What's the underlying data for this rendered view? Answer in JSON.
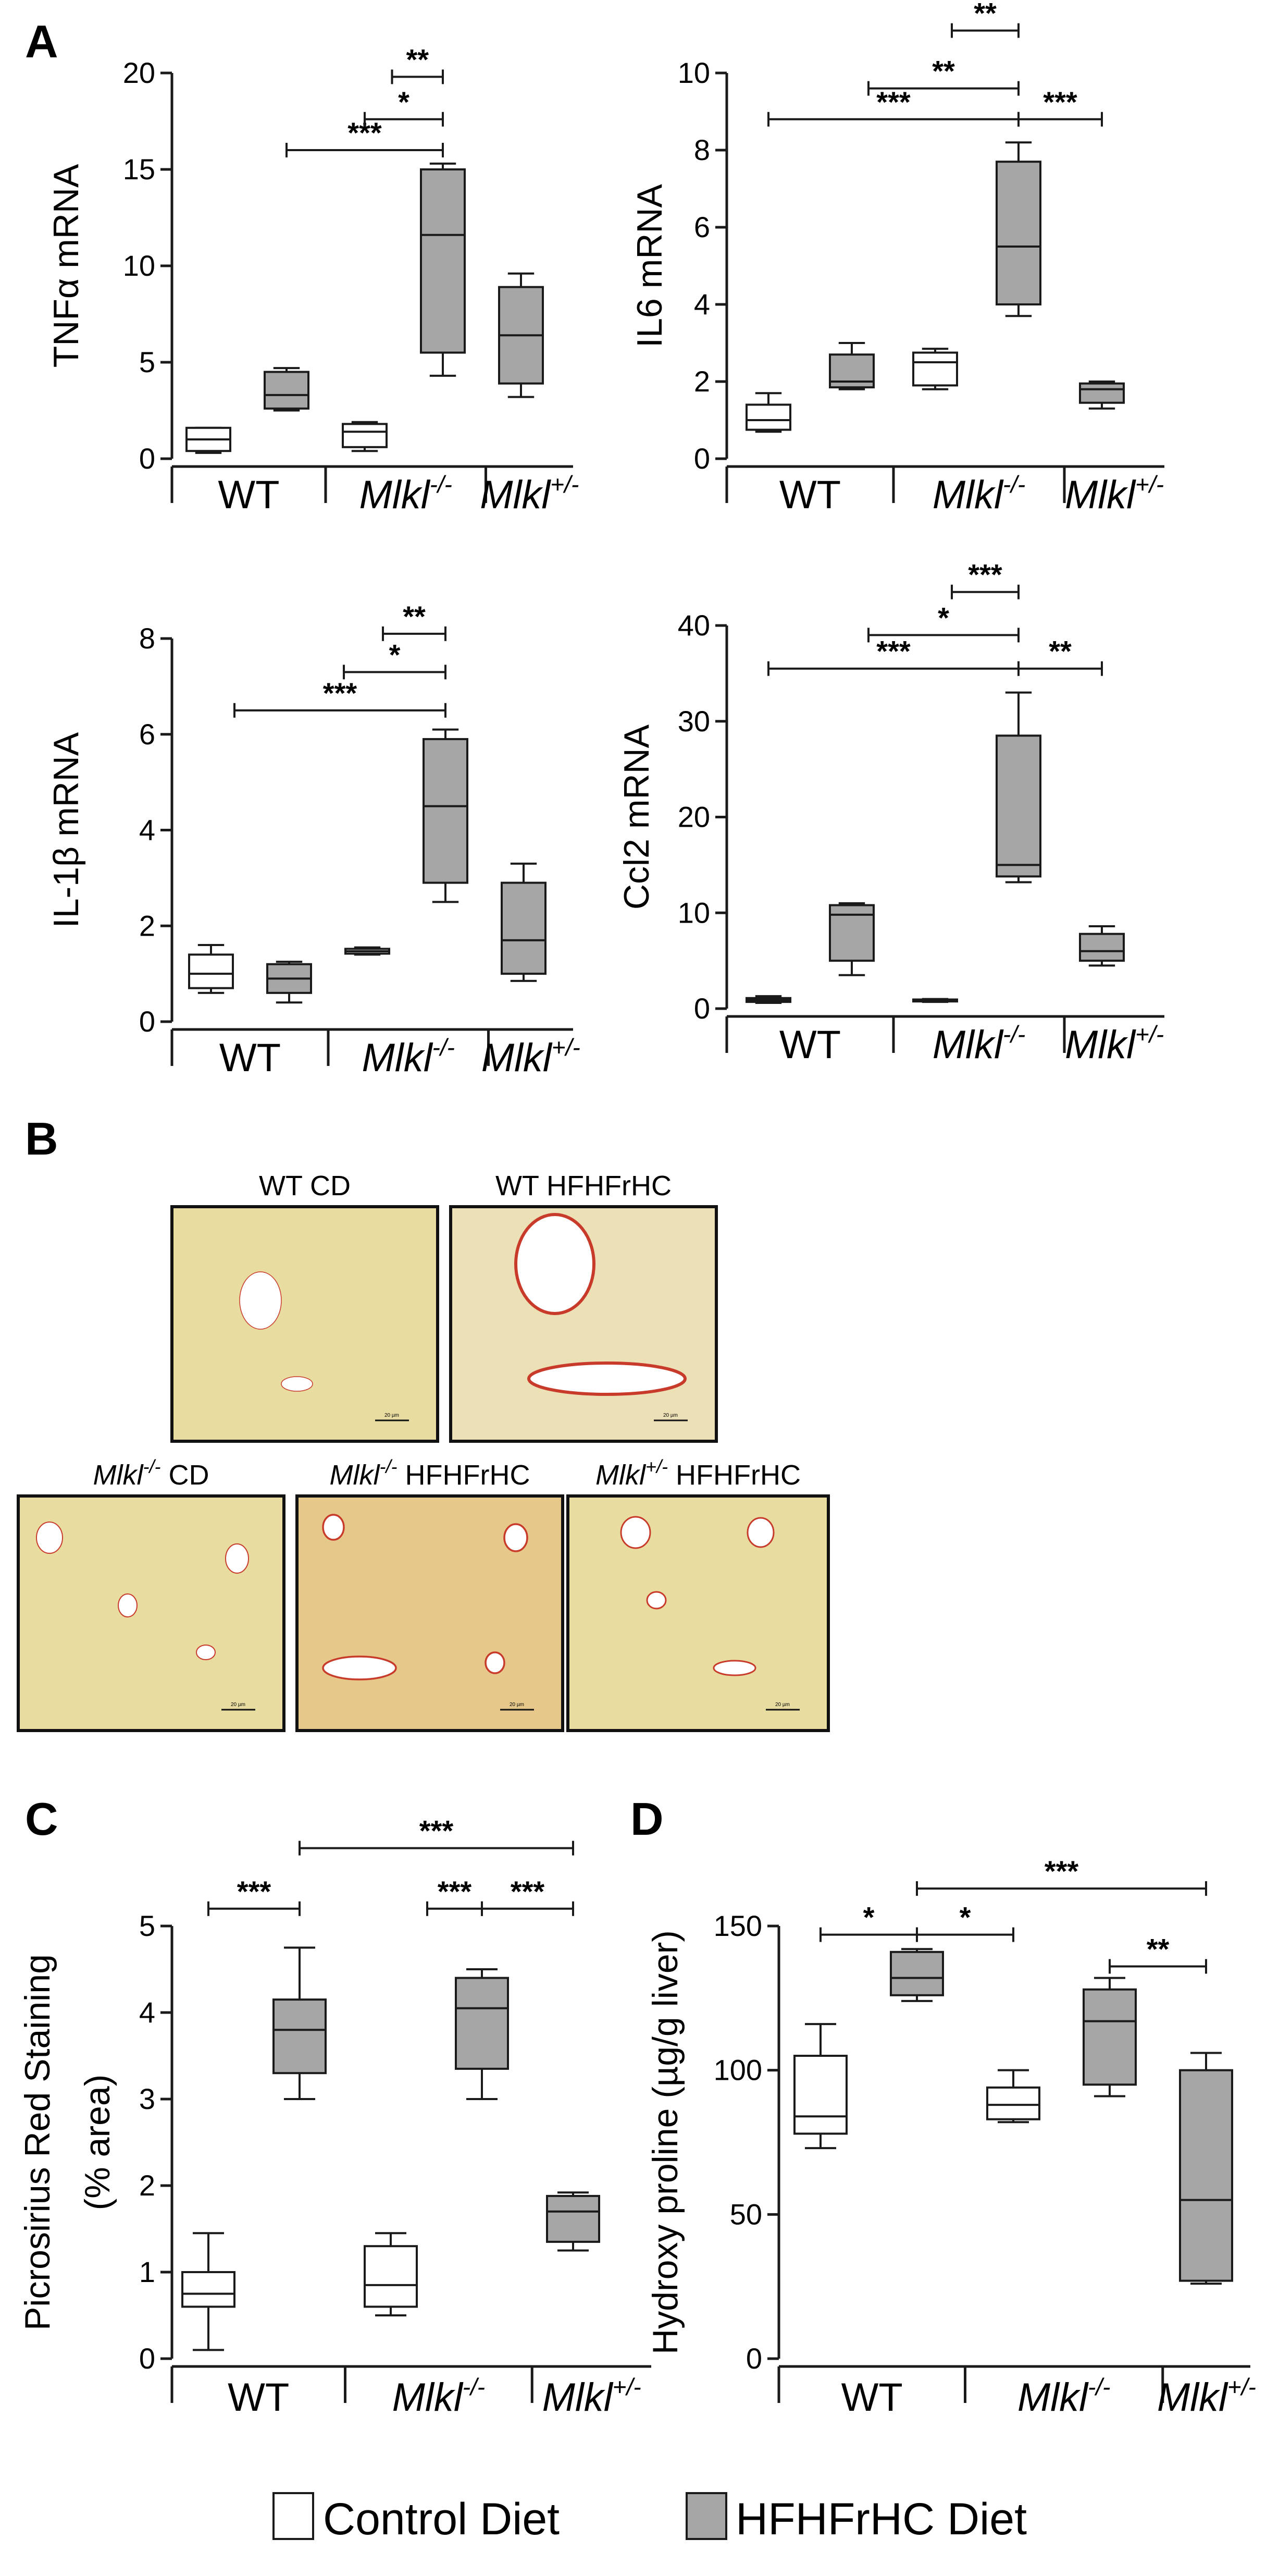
{
  "panel_letters": {
    "A": "A",
    "B": "B",
    "C": "C",
    "D": "D"
  },
  "colors": {
    "control": "#ffffff",
    "hfhfrhc": "#a6a6a6",
    "stroke": "#1a1a1a",
    "sirius": "#c83a2a",
    "tissue": "#e8dca0"
  },
  "group_labels": {
    "wt": "WT",
    "mlkl_ko": "Mlkl",
    "ko_sup": "-/-",
    "mlkl_het": "Mlkl",
    "het_sup": "+/-"
  },
  "legend": {
    "control": "Control Diet",
    "hfhfrhc": "HFHFrHC Diet"
  },
  "micrographs": [
    {
      "label": "WT CD",
      "italic_prefix": "",
      "sup": "",
      "suffix": ""
    },
    {
      "label": "WT HFHFrHC",
      "italic_prefix": "",
      "sup": "",
      "suffix": ""
    },
    {
      "label": "",
      "italic_prefix": "Mlkl",
      "sup": "-/-",
      "suffix": " CD"
    },
    {
      "label": "",
      "italic_prefix": "Mlkl",
      "sup": "-/-",
      "suffix": " HFHFrHC"
    },
    {
      "label": "",
      "italic_prefix": "Mlkl",
      "sup": "+/-",
      "suffix": " HFHFrHC"
    }
  ],
  "scale_bar_text": "20 µm",
  "chart_data": [
    {
      "panel": "A-1",
      "type": "box",
      "ylabel": "TNFα mRNA",
      "ylim": [
        0,
        20
      ],
      "yticks": [
        0,
        5,
        10,
        15,
        20
      ],
      "boxes": [
        {
          "group": "WT",
          "diet": "Control Diet",
          "min": 0.3,
          "q1": 0.4,
          "median": 1.0,
          "q3": 1.6,
          "max": 1.6
        },
        {
          "group": "WT",
          "diet": "HFHFrHC Diet",
          "min": 2.5,
          "q1": 2.6,
          "median": 3.3,
          "q3": 4.5,
          "max": 4.7
        },
        {
          "group": "Mlkl-/-",
          "diet": "Control Diet",
          "min": 0.4,
          "q1": 0.6,
          "median": 1.4,
          "q3": 1.8,
          "max": 1.9
        },
        {
          "group": "Mlkl-/-",
          "diet": "HFHFrHC Diet",
          "min": 4.3,
          "q1": 5.5,
          "median": 11.6,
          "q3": 15.0,
          "max": 15.3
        },
        {
          "group": "Mlkl+/-",
          "diet": "HFHFrHC Diet",
          "min": 3.2,
          "q1": 3.9,
          "median": 6.4,
          "q3": 8.9,
          "max": 9.6
        }
      ],
      "comparisons": [
        {
          "from": 1,
          "to": 3,
          "y": 16,
          "stars": "***"
        },
        {
          "from": 2,
          "to": 3,
          "y": 17.6,
          "stars": "*"
        },
        {
          "from": 2.35,
          "to": 3,
          "y": 19.8,
          "stars": "**"
        }
      ]
    },
    {
      "panel": "A-2",
      "type": "box",
      "ylabel": "IL6 mRNA",
      "ylim": [
        0,
        10
      ],
      "yticks": [
        0,
        2,
        4,
        6,
        8,
        10
      ],
      "boxes": [
        {
          "group": "WT",
          "diet": "Control Diet",
          "min": 0.7,
          "q1": 0.75,
          "median": 1.0,
          "q3": 1.4,
          "max": 1.7
        },
        {
          "group": "WT",
          "diet": "HFHFrHC Diet",
          "min": 1.8,
          "q1": 1.85,
          "median": 2.0,
          "q3": 2.7,
          "max": 3.0
        },
        {
          "group": "Mlkl-/-",
          "diet": "Control Diet",
          "min": 1.8,
          "q1": 1.9,
          "median": 2.5,
          "q3": 2.75,
          "max": 2.85
        },
        {
          "group": "Mlkl-/-",
          "diet": "HFHFrHC Diet",
          "min": 3.7,
          "q1": 4.0,
          "median": 5.5,
          "q3": 7.7,
          "max": 8.2
        },
        {
          "group": "Mlkl+/-",
          "diet": "HFHFrHC Diet",
          "min": 1.3,
          "q1": 1.45,
          "median": 1.8,
          "q3": 1.95,
          "max": 2.0
        }
      ],
      "comparisons": [
        {
          "from": 0,
          "to": 3,
          "y": 8.8,
          "stars": "***"
        },
        {
          "from": 1.2,
          "to": 3,
          "y": 9.6,
          "stars": "**"
        },
        {
          "from": 2.2,
          "to": 3,
          "y": 11.1,
          "stars": "**"
        },
        {
          "from": 3,
          "to": 4,
          "y": 8.8,
          "stars": "***"
        }
      ]
    },
    {
      "panel": "A-3",
      "type": "box",
      "ylabel": "IL-1β mRNA",
      "ylim": [
        0,
        8
      ],
      "yticks": [
        0,
        2,
        4,
        6,
        8
      ],
      "boxes": [
        {
          "group": "WT",
          "diet": "Control Diet",
          "min": 0.6,
          "q1": 0.7,
          "median": 1.0,
          "q3": 1.4,
          "max": 1.6
        },
        {
          "group": "WT",
          "diet": "HFHFrHC Diet",
          "min": 0.4,
          "q1": 0.6,
          "median": 0.9,
          "q3": 1.2,
          "max": 1.25
        },
        {
          "group": "Mlkl-/-",
          "diet": "Control Diet",
          "min": 1.4,
          "q1": 1.42,
          "median": 1.47,
          "q3": 1.52,
          "max": 1.55
        },
        {
          "group": "Mlkl-/-",
          "diet": "HFHFrHC Diet",
          "min": 2.5,
          "q1": 2.9,
          "median": 4.5,
          "q3": 5.9,
          "max": 6.1
        },
        {
          "group": "Mlkl+/-",
          "diet": "HFHFrHC Diet",
          "min": 0.85,
          "q1": 1.0,
          "median": 1.7,
          "q3": 2.9,
          "max": 3.3
        }
      ],
      "comparisons": [
        {
          "from": 0.3,
          "to": 3,
          "y": 6.5,
          "stars": "***"
        },
        {
          "from": 1.7,
          "to": 3,
          "y": 7.3,
          "stars": "*"
        },
        {
          "from": 2.2,
          "to": 3,
          "y": 8.1,
          "stars": "**"
        }
      ]
    },
    {
      "panel": "A-4",
      "type": "box",
      "ylabel": "Ccl2 mRNA",
      "ylim": [
        0,
        40
      ],
      "yticks": [
        0,
        10,
        20,
        30,
        40
      ],
      "boxes": [
        {
          "group": "WT",
          "diet": "Control Diet",
          "min": 0.6,
          "q1": 0.7,
          "median": 0.9,
          "q3": 1.1,
          "max": 1.3
        },
        {
          "group": "WT",
          "diet": "HFHFrHC Diet",
          "min": 3.5,
          "q1": 5.0,
          "median": 9.8,
          "q3": 10.8,
          "max": 11.0
        },
        {
          "group": "Mlkl-/-",
          "diet": "Control Diet",
          "min": 0.7,
          "q1": 0.75,
          "median": 0.85,
          "q3": 0.95,
          "max": 1.0
        },
        {
          "group": "Mlkl-/-",
          "diet": "HFHFrHC Diet",
          "min": 13.2,
          "q1": 13.8,
          "median": 15.0,
          "q3": 28.5,
          "max": 33.0
        },
        {
          "group": "Mlkl+/-",
          "diet": "HFHFrHC Diet",
          "min": 4.5,
          "q1": 5.0,
          "median": 6.0,
          "q3": 7.8,
          "max": 8.6
        }
      ],
      "comparisons": [
        {
          "from": 0,
          "to": 3,
          "y": 35.5,
          "stars": "***"
        },
        {
          "from": 1.2,
          "to": 3,
          "y": 39,
          "stars": "*"
        },
        {
          "from": 2.2,
          "to": 3,
          "y": 43.5,
          "stars": "***"
        },
        {
          "from": 3,
          "to": 4,
          "y": 35.5,
          "stars": "**"
        }
      ]
    },
    {
      "panel": "C",
      "type": "box",
      "ylabel": "Picrosirius Red Staining",
      "ylabel2": "(% area)",
      "ylim": [
        0,
        5
      ],
      "yticks": [
        0,
        1,
        2,
        3,
        4,
        5
      ],
      "boxes": [
        {
          "group": "WT",
          "diet": "Control Diet",
          "min": 0.1,
          "q1": 0.6,
          "median": 0.75,
          "q3": 1.0,
          "max": 1.45
        },
        {
          "group": "WT",
          "diet": "HFHFrHC Diet",
          "min": 3.0,
          "q1": 3.3,
          "median": 3.8,
          "q3": 4.15,
          "max": 4.75
        },
        {
          "group": "Mlkl-/-",
          "diet": "Control Diet",
          "min": 0.5,
          "q1": 0.6,
          "median": 0.85,
          "q3": 1.3,
          "max": 1.45
        },
        {
          "group": "Mlkl-/-",
          "diet": "HFHFrHC Diet",
          "min": 3.0,
          "q1": 3.35,
          "median": 4.05,
          "q3": 4.4,
          "max": 4.5
        },
        {
          "group": "Mlkl+/-",
          "diet": "HFHFrHC Diet",
          "min": 1.25,
          "q1": 1.35,
          "median": 1.7,
          "q3": 1.88,
          "max": 1.92
        }
      ],
      "comparisons": [
        {
          "from": 0,
          "to": 1,
          "y": 5.2,
          "stars": "***"
        },
        {
          "from": 1,
          "to": 4,
          "y": 5.9,
          "stars": "***"
        },
        {
          "from": 2.4,
          "to": 3,
          "y": 5.2,
          "stars": "***"
        },
        {
          "from": 3,
          "to": 4,
          "y": 5.2,
          "stars": "***"
        }
      ]
    },
    {
      "panel": "D",
      "type": "box",
      "ylabel": "Hydroxy proline (µg/g liver)",
      "ylim": [
        0,
        150
      ],
      "yticks": [
        0,
        50,
        100,
        150
      ],
      "boxes": [
        {
          "group": "WT",
          "diet": "Control Diet",
          "min": 73,
          "q1": 78,
          "median": 84,
          "q3": 105,
          "max": 116
        },
        {
          "group": "WT",
          "diet": "HFHFrHC Diet",
          "min": 124,
          "q1": 126,
          "median": 132,
          "q3": 141,
          "max": 142
        },
        {
          "group": "Mlkl-/-",
          "diet": "Control Diet",
          "min": 82,
          "q1": 83,
          "median": 88,
          "q3": 94,
          "max": 100
        },
        {
          "group": "Mlkl-/-",
          "diet": "HFHFrHC Diet",
          "min": 91,
          "q1": 95,
          "median": 117,
          "q3": 128,
          "max": 132
        },
        {
          "group": "Mlkl+/-",
          "diet": "HFHFrHC Diet",
          "min": 26,
          "q1": 27,
          "median": 55,
          "q3": 100,
          "max": 106
        }
      ],
      "comparisons": [
        {
          "from": 0,
          "to": 1,
          "y": 147,
          "stars": "*"
        },
        {
          "from": 1,
          "to": 2,
          "y": 147,
          "stars": "*"
        },
        {
          "from": 1,
          "to": 4,
          "y": 163,
          "stars": "***"
        },
        {
          "from": 3,
          "to": 4,
          "y": 136,
          "stars": "**"
        }
      ]
    }
  ]
}
